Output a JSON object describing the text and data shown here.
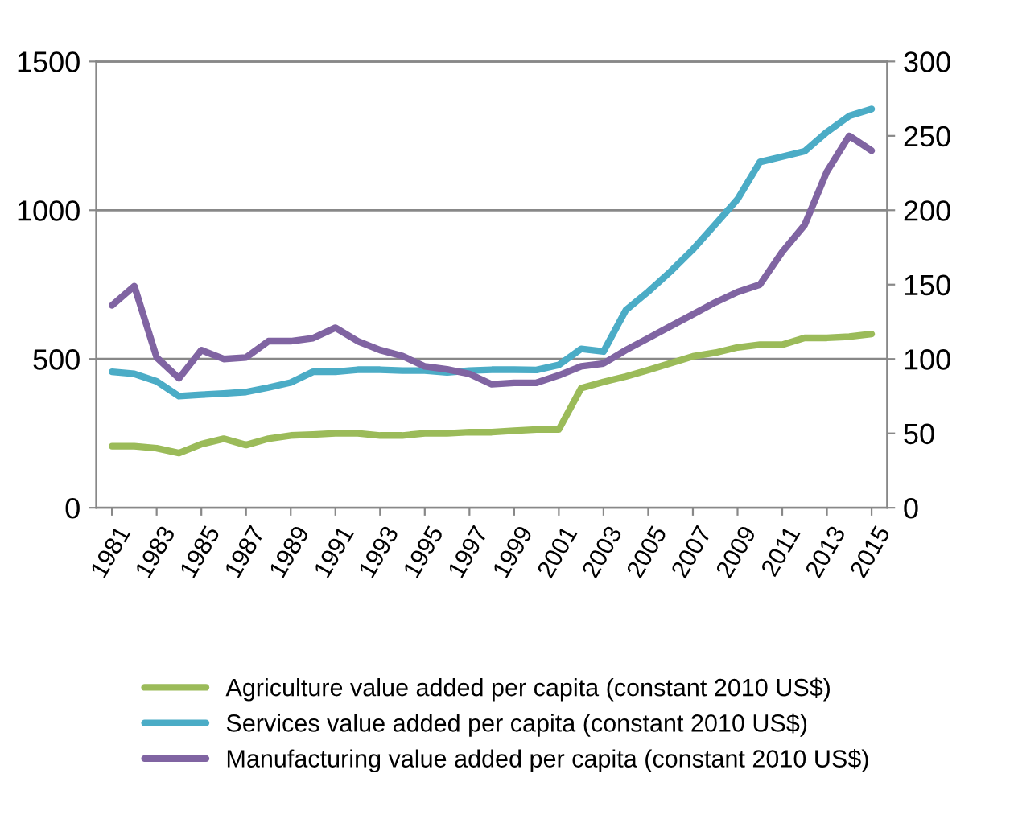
{
  "chart_data": {
    "type": "line",
    "x": [
      1981,
      1982,
      1983,
      1984,
      1985,
      1986,
      1987,
      1988,
      1989,
      1990,
      1991,
      1992,
      1993,
      1994,
      1995,
      1996,
      1997,
      1998,
      1999,
      2000,
      2001,
      2002,
      2003,
      2004,
      2005,
      2006,
      2007,
      2008,
      2009,
      2010,
      2011,
      2012,
      2013,
      2014,
      2015
    ],
    "series": [
      {
        "name": "Agriculture value added per capita (constant 2010 US$)",
        "color": "#9bbb59",
        "values": [
          207,
          207,
          200,
          184,
          214,
          232,
          211,
          232,
          243,
          246,
          250,
          250,
          243,
          243,
          250,
          250,
          254,
          254,
          259,
          263,
          263,
          402,
          423,
          441,
          463,
          486,
          509,
          521,
          539,
          548,
          548,
          571,
          571,
          575,
          584
        ]
      },
      {
        "name": "Services value added per capita (constant 2010 US$)",
        "color": "#4bacc6",
        "values": [
          457,
          450,
          425,
          375,
          380,
          384,
          389,
          404,
          421,
          457,
          457,
          464,
          464,
          461,
          461,
          455,
          461,
          464,
          464,
          463,
          480,
          534,
          525,
          664,
          726,
          794,
          868,
          952,
          1037,
          1162,
          1180,
          1198,
          1263,
          1317,
          1340
        ]
      },
      {
        "name": "Manufacturing value added per capita (constant 2010 US$)",
        "color": "#8064a2",
        "axis": "y2",
        "values": [
          136,
          149,
          101,
          87,
          106,
          100,
          101,
          112,
          112,
          114,
          121,
          112,
          106,
          102,
          95,
          93,
          90,
          83,
          84,
          84,
          89,
          95,
          97,
          106,
          114,
          122,
          130,
          138,
          145,
          150,
          172,
          190,
          226,
          250,
          240
        ]
      }
    ],
    "xlim": [
      1980.3,
      2015.7
    ],
    "xticks": [
      1981,
      1983,
      1985,
      1987,
      1989,
      1991,
      1993,
      1995,
      1997,
      1999,
      2001,
      2003,
      2005,
      2007,
      2009,
      2011,
      2013,
      2015
    ],
    "ylim": [
      0,
      1500
    ],
    "yticks": [
      0,
      500,
      1000,
      1500
    ],
    "y2lim": [
      0,
      300
    ],
    "y2ticks": [
      0,
      50,
      100,
      150,
      200,
      250,
      300
    ],
    "grid": "y",
    "legend": "bottom",
    "line_style": "solid",
    "marker": "none"
  }
}
